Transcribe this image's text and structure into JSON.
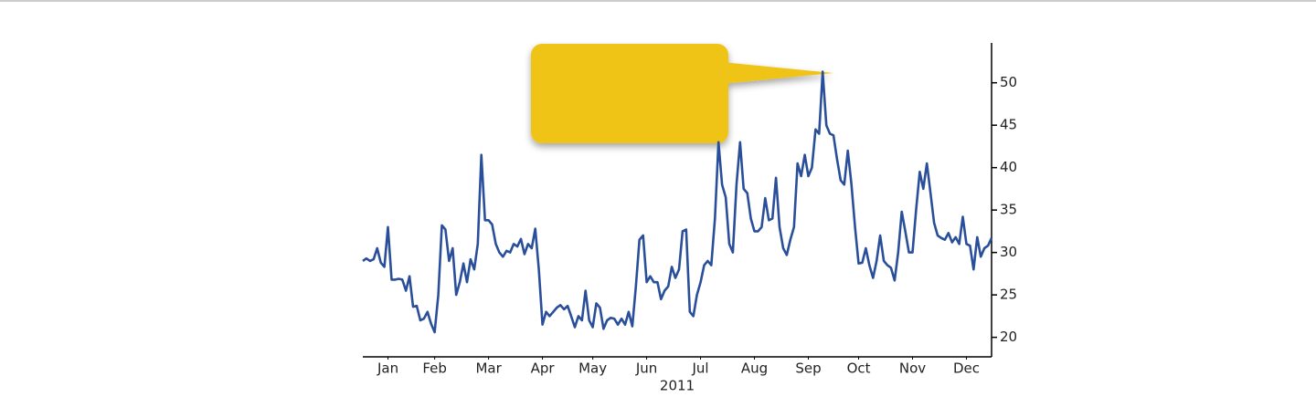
{
  "chart_data": {
    "type": "line",
    "xlabel": "2011",
    "xlim": [
      0,
      175
    ],
    "xticks": [
      {
        "value": 7,
        "label": "Jan"
      },
      {
        "value": 20,
        "label": "Feb"
      },
      {
        "value": 35,
        "label": "Mar"
      },
      {
        "value": 50,
        "label": "Apr"
      },
      {
        "value": 64,
        "label": "May"
      },
      {
        "value": 79,
        "label": "Jun"
      },
      {
        "value": 94,
        "label": "Jul"
      },
      {
        "value": 109,
        "label": "Aug"
      },
      {
        "value": 124,
        "label": "Sep"
      },
      {
        "value": 138,
        "label": "Oct"
      },
      {
        "value": 153,
        "label": "Nov"
      },
      {
        "value": 168,
        "label": "Dec"
      }
    ],
    "ylim": [
      17.7,
      54.7
    ],
    "yticks": [
      20,
      25,
      30,
      35,
      40,
      45,
      50
    ],
    "color": "#2a4f9a",
    "values": [
      29,
      29.3,
      29,
      29.2,
      30.5,
      28.8,
      28.3,
      33,
      26.8,
      26.8,
      26.9,
      26.8,
      25.5,
      27.2,
      23.6,
      23.7,
      22,
      22.2,
      23,
      21.6,
      20.6,
      25,
      33.2,
      32.7,
      29,
      30.5,
      25,
      26.5,
      28.7,
      26.5,
      29.2,
      28,
      31,
      41.5,
      33.8,
      33.8,
      33.3,
      31,
      30,
      29.5,
      30.2,
      30,
      31,
      30.7,
      31.6,
      29.8,
      31,
      30.5,
      32.8,
      28,
      21.5,
      23,
      22.5,
      23,
      23.5,
      23.8,
      23.3,
      23.7,
      22.5,
      21.2,
      22.5,
      22,
      25.5,
      22,
      21.2,
      24,
      23.5,
      21,
      22,
      22.3,
      22.2,
      21.5,
      22.2,
      21.5,
      23,
      21.3,
      26,
      31.5,
      32,
      26.5,
      27.2,
      26.5,
      26.5,
      24.5,
      25.5,
      26,
      28.3,
      27,
      28,
      32.5,
      32.7,
      23,
      22.5,
      25,
      26.5,
      28.5,
      29,
      28.5,
      34,
      43,
      38,
      36.5,
      31,
      30,
      38,
      43,
      37.5,
      37,
      34,
      32.5,
      32.5,
      33,
      36.4,
      33.8,
      34,
      38.8,
      33,
      30.5,
      29.7,
      31.5,
      33,
      40.5,
      39,
      41.5,
      39,
      40,
      44.5,
      44,
      51.3,
      45,
      44,
      43.8,
      41,
      38.5,
      38,
      42,
      38,
      33,
      28.7,
      28.8,
      30.5,
      28.5,
      27,
      29,
      32,
      29,
      28.5,
      28.2,
      26.7,
      30,
      34.8,
      32.5,
      30,
      30,
      35,
      39.5,
      37.5,
      40.5,
      37,
      33.5,
      32,
      31.7,
      31.5,
      32.3,
      31.2,
      31.8,
      31,
      34.2,
      31,
      30.8,
      28,
      31.8,
      29.5,
      30.5,
      30.8,
      31.7
    ]
  }
}
